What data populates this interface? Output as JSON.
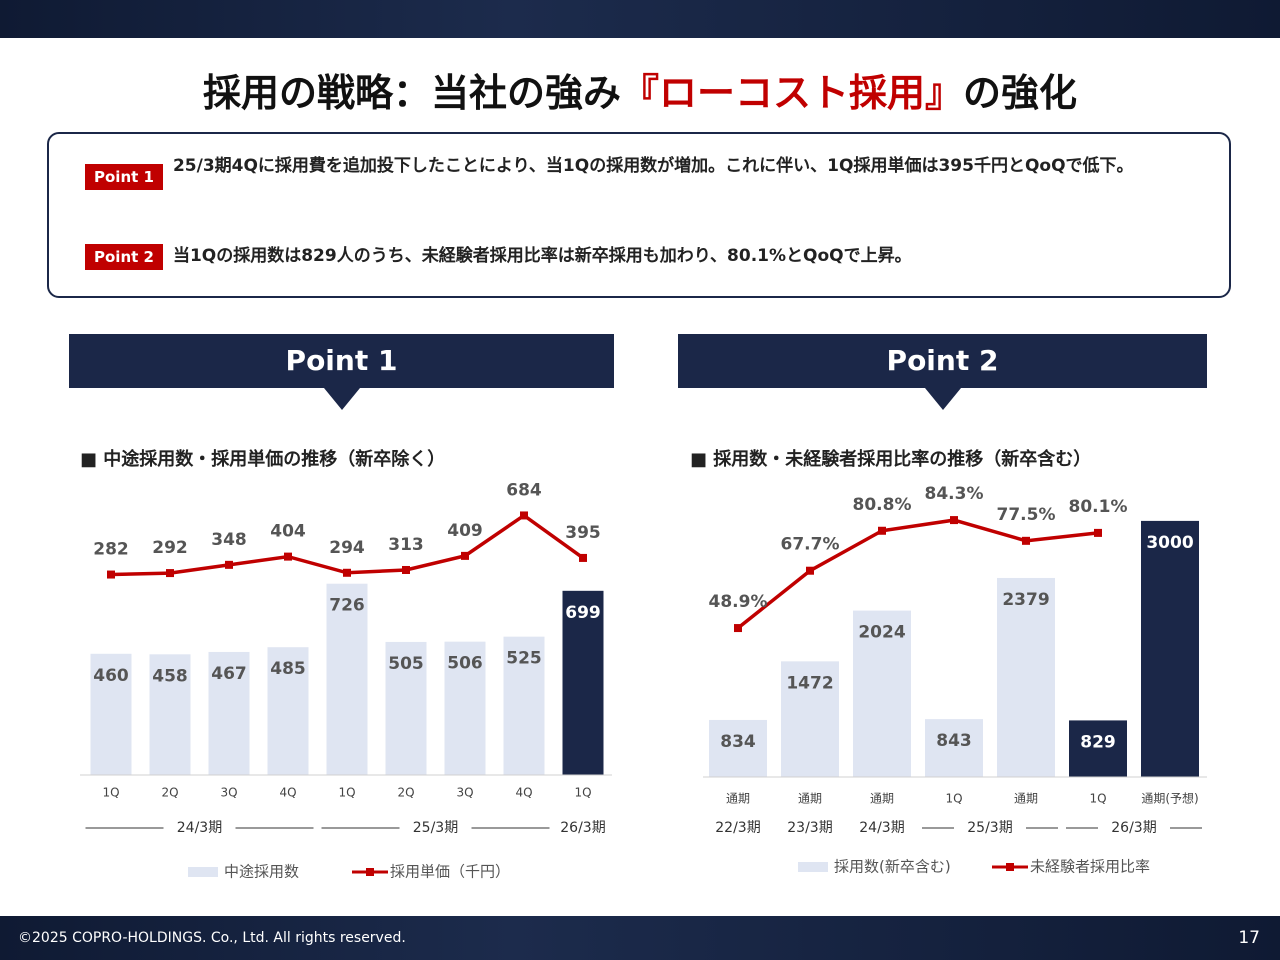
{
  "title": {
    "before": "採用の戦略：当社の強み",
    "highlight": "『ローコスト採用』",
    "after": "の強化"
  },
  "points": [
    {
      "label": "Point 1",
      "text": "25/3期4Qに採用費を追加投下したことにより、当1Qの採用数が増加。これに伴い、1Q採用単価は395千円とQoQで低下。"
    },
    {
      "label": "Point 2",
      "text": "当1Qの採用数は829人のうち、未経験者採用比率は新卒採用も加わり、80.1%とQoQで上昇。"
    }
  ],
  "panels": [
    "Point 1",
    "Point 2"
  ],
  "chart_data": [
    {
      "type": "bar-line",
      "title": "■ 中途採用数・採用単価の推移（新卒除く）",
      "groups": [
        {
          "label": "24/3期",
          "categories": [
            "1Q",
            "2Q",
            "3Q",
            "4Q"
          ]
        },
        {
          "label": "25/3期",
          "categories": [
            "1Q",
            "2Q",
            "3Q",
            "4Q"
          ]
        },
        {
          "label": "26/3期",
          "categories": [
            "1Q"
          ]
        }
      ],
      "series": [
        {
          "name": "中途採用数",
          "kind": "bar",
          "color": "#dfe5f2",
          "colors": [
            "#dfe5f2",
            "#dfe5f2",
            "#dfe5f2",
            "#dfe5f2",
            "#dfe5f2",
            "#dfe5f2",
            "#dfe5f2",
            "#dfe5f2",
            "#1b2748"
          ],
          "values": [
            460,
            458,
            467,
            485,
            726,
            505,
            506,
            525,
            699
          ]
        },
        {
          "name": "採用単価（千円）",
          "kind": "line",
          "color": "#c00000",
          "values": [
            282,
            292,
            348,
            404,
            294,
            313,
            409,
            684,
            395
          ]
        }
      ]
    },
    {
      "type": "bar-line",
      "title": "■ 採用数・未経験者採用比率の推移（新卒含む）",
      "groups": [
        {
          "label": "22/3期",
          "categories": [
            "通期"
          ]
        },
        {
          "label": "23/3期",
          "categories": [
            "通期"
          ]
        },
        {
          "label": "24/3期",
          "categories": [
            "通期"
          ]
        },
        {
          "label": "25/3期",
          "categories": [
            "1Q",
            "通期"
          ]
        },
        {
          "label": "26/3期",
          "categories": [
            "1Q",
            "通期(予想)"
          ]
        }
      ],
      "series": [
        {
          "name": "採用数(新卒含む)",
          "kind": "bar",
          "color": "#dfe5f2",
          "colors": [
            "#dfe5f2",
            "#dfe5f2",
            "#dfe5f2",
            "#dfe5f2",
            "#dfe5f2",
            "#1b2748",
            "#1b2748"
          ],
          "values": [
            834,
            1472,
            2024,
            843,
            2379,
            829,
            3000
          ]
        },
        {
          "name": "未経験者採用比率",
          "kind": "line",
          "color": "#c00000",
          "values": [
            48.9,
            67.7,
            80.8,
            84.3,
            77.5,
            80.1,
            null
          ],
          "value_labels": [
            "48.9%",
            "67.7%",
            "80.8%",
            "84.3%",
            "77.5%",
            "80.1%",
            null
          ]
        }
      ]
    }
  ],
  "footer": {
    "copyright": "©2025 COPRO-HOLDINGS. Co., Ltd. All rights reserved.",
    "page": "17"
  }
}
